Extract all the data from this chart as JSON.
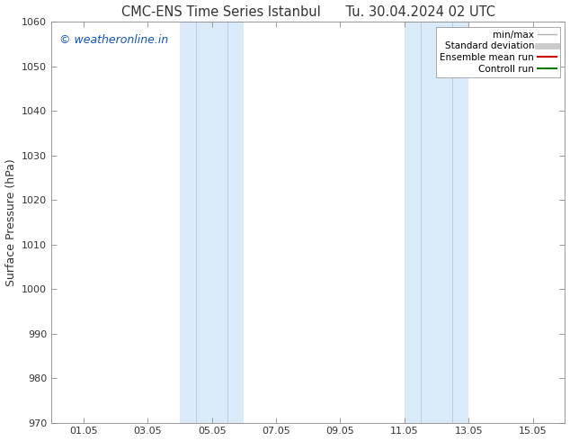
{
  "title": "CMC-ENS Time Series Istanbul      Tu. 30.04.2024 02 UTC",
  "ylabel": "Surface Pressure (hPa)",
  "ylim": [
    970,
    1060
  ],
  "yticks": [
    970,
    980,
    990,
    1000,
    1010,
    1020,
    1030,
    1040,
    1050,
    1060
  ],
  "xlim": [
    0,
    16
  ],
  "xtick_labels": [
    "01.05",
    "03.05",
    "05.05",
    "07.05",
    "09.05",
    "11.05",
    "13.05",
    "15.05"
  ],
  "xtick_positions": [
    1,
    3,
    5,
    7,
    9,
    11,
    13,
    15
  ],
  "shaded_bands": [
    {
      "x_start": 4.0,
      "x_end": 5.0,
      "divider": 4.5
    },
    {
      "x_start": 5.0,
      "x_end": 6.0,
      "divider": 5.5
    },
    {
      "x_start": 11.0,
      "x_end": 12.0,
      "divider": 11.5
    },
    {
      "x_start": 12.0,
      "x_end": 13.0,
      "divider": 12.5
    }
  ],
  "shade_color": "#daeaf8",
  "divider_color": "#b0cce8",
  "watermark_text": "© weatheronline.in",
  "watermark_color": "#1155bb",
  "legend_entries": [
    {
      "label": "min/max",
      "color": "#b0b0b0",
      "lw": 1.0,
      "style": "solid"
    },
    {
      "label": "Standard deviation",
      "color": "#cccccc",
      "lw": 5,
      "style": "solid"
    },
    {
      "label": "Ensemble mean run",
      "color": "#cc0000",
      "lw": 1.5,
      "style": "solid"
    },
    {
      "label": "Controll run",
      "color": "#007700",
      "lw": 1.5,
      "style": "solid"
    }
  ],
  "bg_color": "#ffffff",
  "spine_color": "#888888",
  "tick_color": "#333333",
  "title_fontsize": 10.5,
  "ylabel_fontsize": 9,
  "tick_fontsize": 8,
  "watermark_fontsize": 9,
  "legend_fontsize": 7.5
}
